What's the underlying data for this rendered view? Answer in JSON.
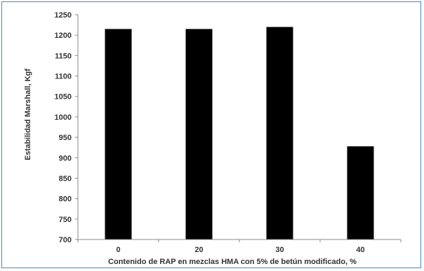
{
  "chart_data": {
    "type": "bar",
    "categories": [
      "0",
      "20",
      "30",
      "40"
    ],
    "values": [
      1215,
      1215,
      1220,
      928
    ],
    "title": "",
    "xlabel": "Contenido de RAP en mezclas HMA con 5% de betún modificado, %",
    "ylabel": "Estabilidad Marshall, Kgf",
    "ylim": [
      700,
      1250
    ],
    "yticks": [
      700,
      750,
      800,
      850,
      900,
      950,
      1000,
      1050,
      1100,
      1150,
      1200,
      1250
    ],
    "grid": false,
    "legend": "none",
    "colors": {
      "bar": "#000000",
      "axis": "#888888",
      "frame": "#3a8fc4",
      "text": "#333333"
    }
  }
}
